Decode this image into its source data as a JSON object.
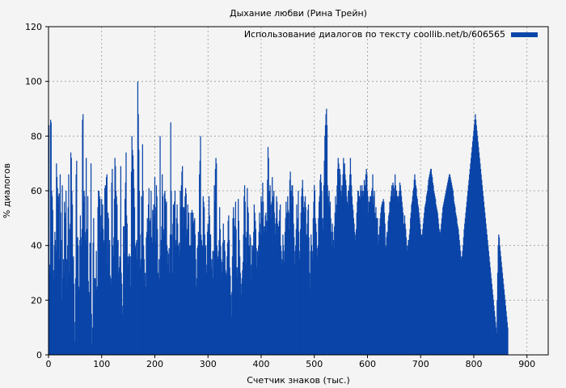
{
  "chart_data": {
    "type": "bar",
    "title": "Дыхание любви (Рина Трейн)",
    "xlabel": "Счетчик знаков (тыс.)",
    "ylabel": "% диалогов",
    "xlim": [
      0,
      940
    ],
    "ylim": [
      0,
      120
    ],
    "xticks": [
      0,
      100,
      200,
      300,
      400,
      500,
      600,
      700,
      800,
      900
    ],
    "yticks": [
      0,
      20,
      40,
      60,
      80,
      100,
      120
    ],
    "grid": true,
    "legend_position": "top-right",
    "bar_color": "#0b45a8",
    "series": [
      {
        "name": "Использование диалогов по тексту coollib.net/b/606565",
        "x_step": 1,
        "values": [
          84,
          33,
          30,
          86,
          85,
          60,
          58,
          53,
          31,
          28,
          40,
          45,
          42,
          38,
          70,
          65,
          61,
          58,
          55,
          59,
          35,
          66,
          52,
          42,
          20,
          62,
          28,
          35,
          30,
          56,
          50,
          52,
          60,
          35,
          25,
          40,
          54,
          66,
          30,
          46,
          48,
          74,
          72,
          60,
          55,
          35,
          36,
          26,
          5,
          12,
          28,
          66,
          71,
          40,
          43,
          40,
          25,
          24,
          42,
          51,
          43,
          40,
          46,
          86,
          88,
          56,
          60,
          58,
          42,
          45,
          72,
          46,
          40,
          58,
          27,
          23,
          22,
          41,
          37,
          70,
          15,
          4,
          10,
          41,
          50,
          21,
          28,
          28,
          25,
          38,
          24,
          25,
          54,
          60,
          60,
          58,
          57,
          45,
          51,
          57,
          47,
          55,
          46,
          41,
          42,
          61,
          62,
          59,
          65,
          66,
          33,
          52,
          50,
          40,
          42,
          29,
          28,
          26,
          63,
          68,
          40,
          36,
          43,
          57,
          72,
          69,
          60,
          58,
          55,
          41,
          42,
          30,
          32,
          36,
          34,
          69,
          30,
          26,
          15,
          18,
          47,
          37,
          47,
          57,
          63,
          74,
          51,
          48,
          36,
          33,
          36,
          37,
          36,
          25,
          36,
          67,
          80,
          75,
          73,
          68,
          61,
          54,
          39,
          40,
          41,
          42,
          35,
          100,
          88,
          75,
          60,
          44,
          32,
          35,
          58,
          45,
          77,
          60,
          40,
          35,
          27,
          30,
          25,
          43,
          45,
          50,
          44,
          55,
          61,
          49,
          43,
          50,
          60,
          43,
          41,
          53,
          48,
          55,
          51,
          65,
          41,
          54,
          62,
          58,
          46,
          30,
          28,
          35,
          28,
          80,
          36,
          42,
          47,
          66,
          58,
          46,
          44,
          59,
          60,
          57,
          55,
          56,
          40,
          38,
          33,
          37,
          39,
          30,
          44,
          85,
          60,
          44,
          30,
          48,
          55,
          54,
          56,
          60,
          40,
          42,
          50,
          55,
          48,
          40,
          36,
          41,
          38,
          60,
          54,
          62,
          67,
          69,
          54,
          46,
          54,
          53,
          58,
          61,
          59,
          44,
          46,
          55,
          48,
          52,
          40,
          40,
          40,
          52,
          40,
          53,
          48,
          52,
          48,
          49,
          50,
          44,
          35,
          25,
          28,
          39,
          40,
          45,
          42,
          66,
          71,
          80,
          44,
          42,
          40,
          40,
          58,
          56,
          54,
          44,
          39,
          40,
          30,
          33,
          45,
          48,
          46,
          58,
          51,
          44,
          44,
          32,
          35,
          31,
          38,
          28,
          38,
          62,
          56,
          68,
          72,
          70,
          40,
          36,
          35,
          38,
          42,
          54,
          46,
          40,
          35,
          30,
          34,
          41,
          48,
          34,
          42,
          38,
          31,
          30,
          29,
          36,
          41,
          49,
          51,
          42,
          32,
          29,
          22,
          14,
          23,
          36,
          50,
          54,
          50,
          44,
          47,
          56,
          46,
          32,
          28,
          32,
          57,
          49,
          42,
          36,
          30,
          26,
          22,
          28,
          31,
          34,
          44,
          58,
          62,
          56,
          43,
          33,
          45,
          61,
          54,
          52,
          40,
          37,
          44,
          43,
          27,
          33,
          40,
          38,
          40,
          45,
          55,
          52,
          49,
          46,
          39,
          32,
          38,
          36,
          40,
          45,
          52,
          48,
          44,
          58,
          56,
          50,
          63,
          56,
          47,
          45,
          47,
          51,
          52,
          45,
          49,
          64,
          76,
          72,
          60,
          59,
          62,
          55,
          50,
          56,
          65,
          56,
          58,
          60,
          52,
          48,
          44,
          50,
          58,
          56,
          48,
          44,
          47,
          49,
          53,
          55,
          40,
          38,
          33,
          35,
          44,
          40,
          34,
          38,
          45,
          50,
          56,
          47,
          52,
          58,
          53,
          46,
          52,
          64,
          67,
          60,
          55,
          62,
          62,
          58,
          48,
          43,
          33,
          38,
          40,
          46,
          55,
          48,
          50,
          60,
          45,
          35,
          38,
          46,
          52,
          58,
          61,
          64,
          58,
          54,
          52,
          56,
          58,
          54,
          44,
          43,
          48,
          53,
          55,
          43,
          30,
          24,
          38,
          44,
          40,
          35,
          38,
          50,
          56,
          62,
          60,
          50,
          48,
          45,
          39,
          36,
          40,
          50,
          56,
          58,
          64,
          66,
          63,
          60,
          50,
          46,
          50,
          62,
          71,
          80,
          84,
          88,
          90,
          84,
          62,
          58,
          55,
          60,
          54,
          56,
          50,
          45,
          40,
          48,
          45,
          42,
          39,
          47,
          52,
          58,
          52,
          55,
          62,
          68,
          72,
          70,
          64,
          68,
          66,
          60,
          58,
          62,
          60,
          66,
          72,
          68,
          70,
          66,
          64,
          62,
          58,
          56,
          55,
          60,
          60,
          62,
          66,
          72,
          66,
          62,
          58,
          55,
          53,
          50,
          48,
          45,
          42,
          44,
          46,
          52,
          56,
          60,
          60,
          58,
          58,
          57,
          62,
          60,
          58,
          62,
          60,
          60,
          58,
          64,
          62,
          62,
          66,
          68,
          66,
          60,
          58,
          52,
          56,
          56,
          58,
          58,
          56,
          60,
          61,
          66,
          55,
          58,
          60,
          52,
          50,
          54,
          50,
          50,
          50,
          40,
          44,
          42,
          47,
          50,
          52,
          54,
          55,
          56,
          56,
          57,
          56,
          52,
          48,
          40,
          39,
          43,
          45,
          44,
          49,
          51,
          52,
          56,
          56,
          58,
          60,
          62,
          58,
          63,
          62,
          58,
          61,
          66,
          62,
          60,
          60,
          58,
          58,
          56,
          58,
          60,
          63,
          62,
          60,
          58,
          56,
          54,
          52,
          48,
          48,
          51,
          48,
          46,
          43,
          40,
          38,
          40,
          42,
          42,
          44,
          46,
          50,
          52,
          55,
          56,
          58,
          60,
          61,
          64,
          66,
          64,
          62,
          61,
          58,
          57,
          55,
          54,
          52,
          50,
          48,
          46,
          44,
          43,
          44,
          46,
          48,
          50,
          52,
          54,
          55,
          56,
          58,
          59,
          60,
          62,
          64,
          65,
          66,
          67,
          68,
          68,
          66,
          65,
          63,
          62,
          60,
          59,
          58,
          57,
          55,
          54,
          53,
          52,
          50,
          48,
          46,
          45,
          44,
          46,
          48,
          50,
          52,
          54,
          55,
          56,
          57,
          58,
          59,
          60,
          61,
          62,
          63,
          64,
          65,
          66,
          66,
          65,
          64,
          63,
          62,
          61,
          60,
          58,
          56,
          55,
          54,
          52,
          51,
          50,
          48,
          47,
          46,
          44,
          42,
          40,
          38,
          36,
          35,
          36,
          38,
          40,
          43,
          46,
          48,
          50,
          52,
          54,
          56,
          58,
          60,
          62,
          64,
          66,
          68,
          70,
          72,
          74,
          76,
          78,
          80,
          82,
          84,
          86,
          88,
          86,
          84,
          82,
          80,
          78,
          76,
          74,
          72,
          70,
          68,
          66,
          64,
          62,
          60,
          58,
          56,
          54,
          52,
          50,
          48,
          46,
          44,
          42,
          40,
          38,
          36,
          34,
          32,
          30,
          28,
          26,
          24,
          22,
          20,
          18,
          16,
          14,
          12,
          10,
          8,
          20,
          30,
          40,
          44,
          43,
          40,
          38,
          36,
          34,
          32,
          30,
          28,
          26,
          24,
          22,
          20,
          18,
          16,
          14,
          12,
          10
        ]
      }
    ]
  }
}
